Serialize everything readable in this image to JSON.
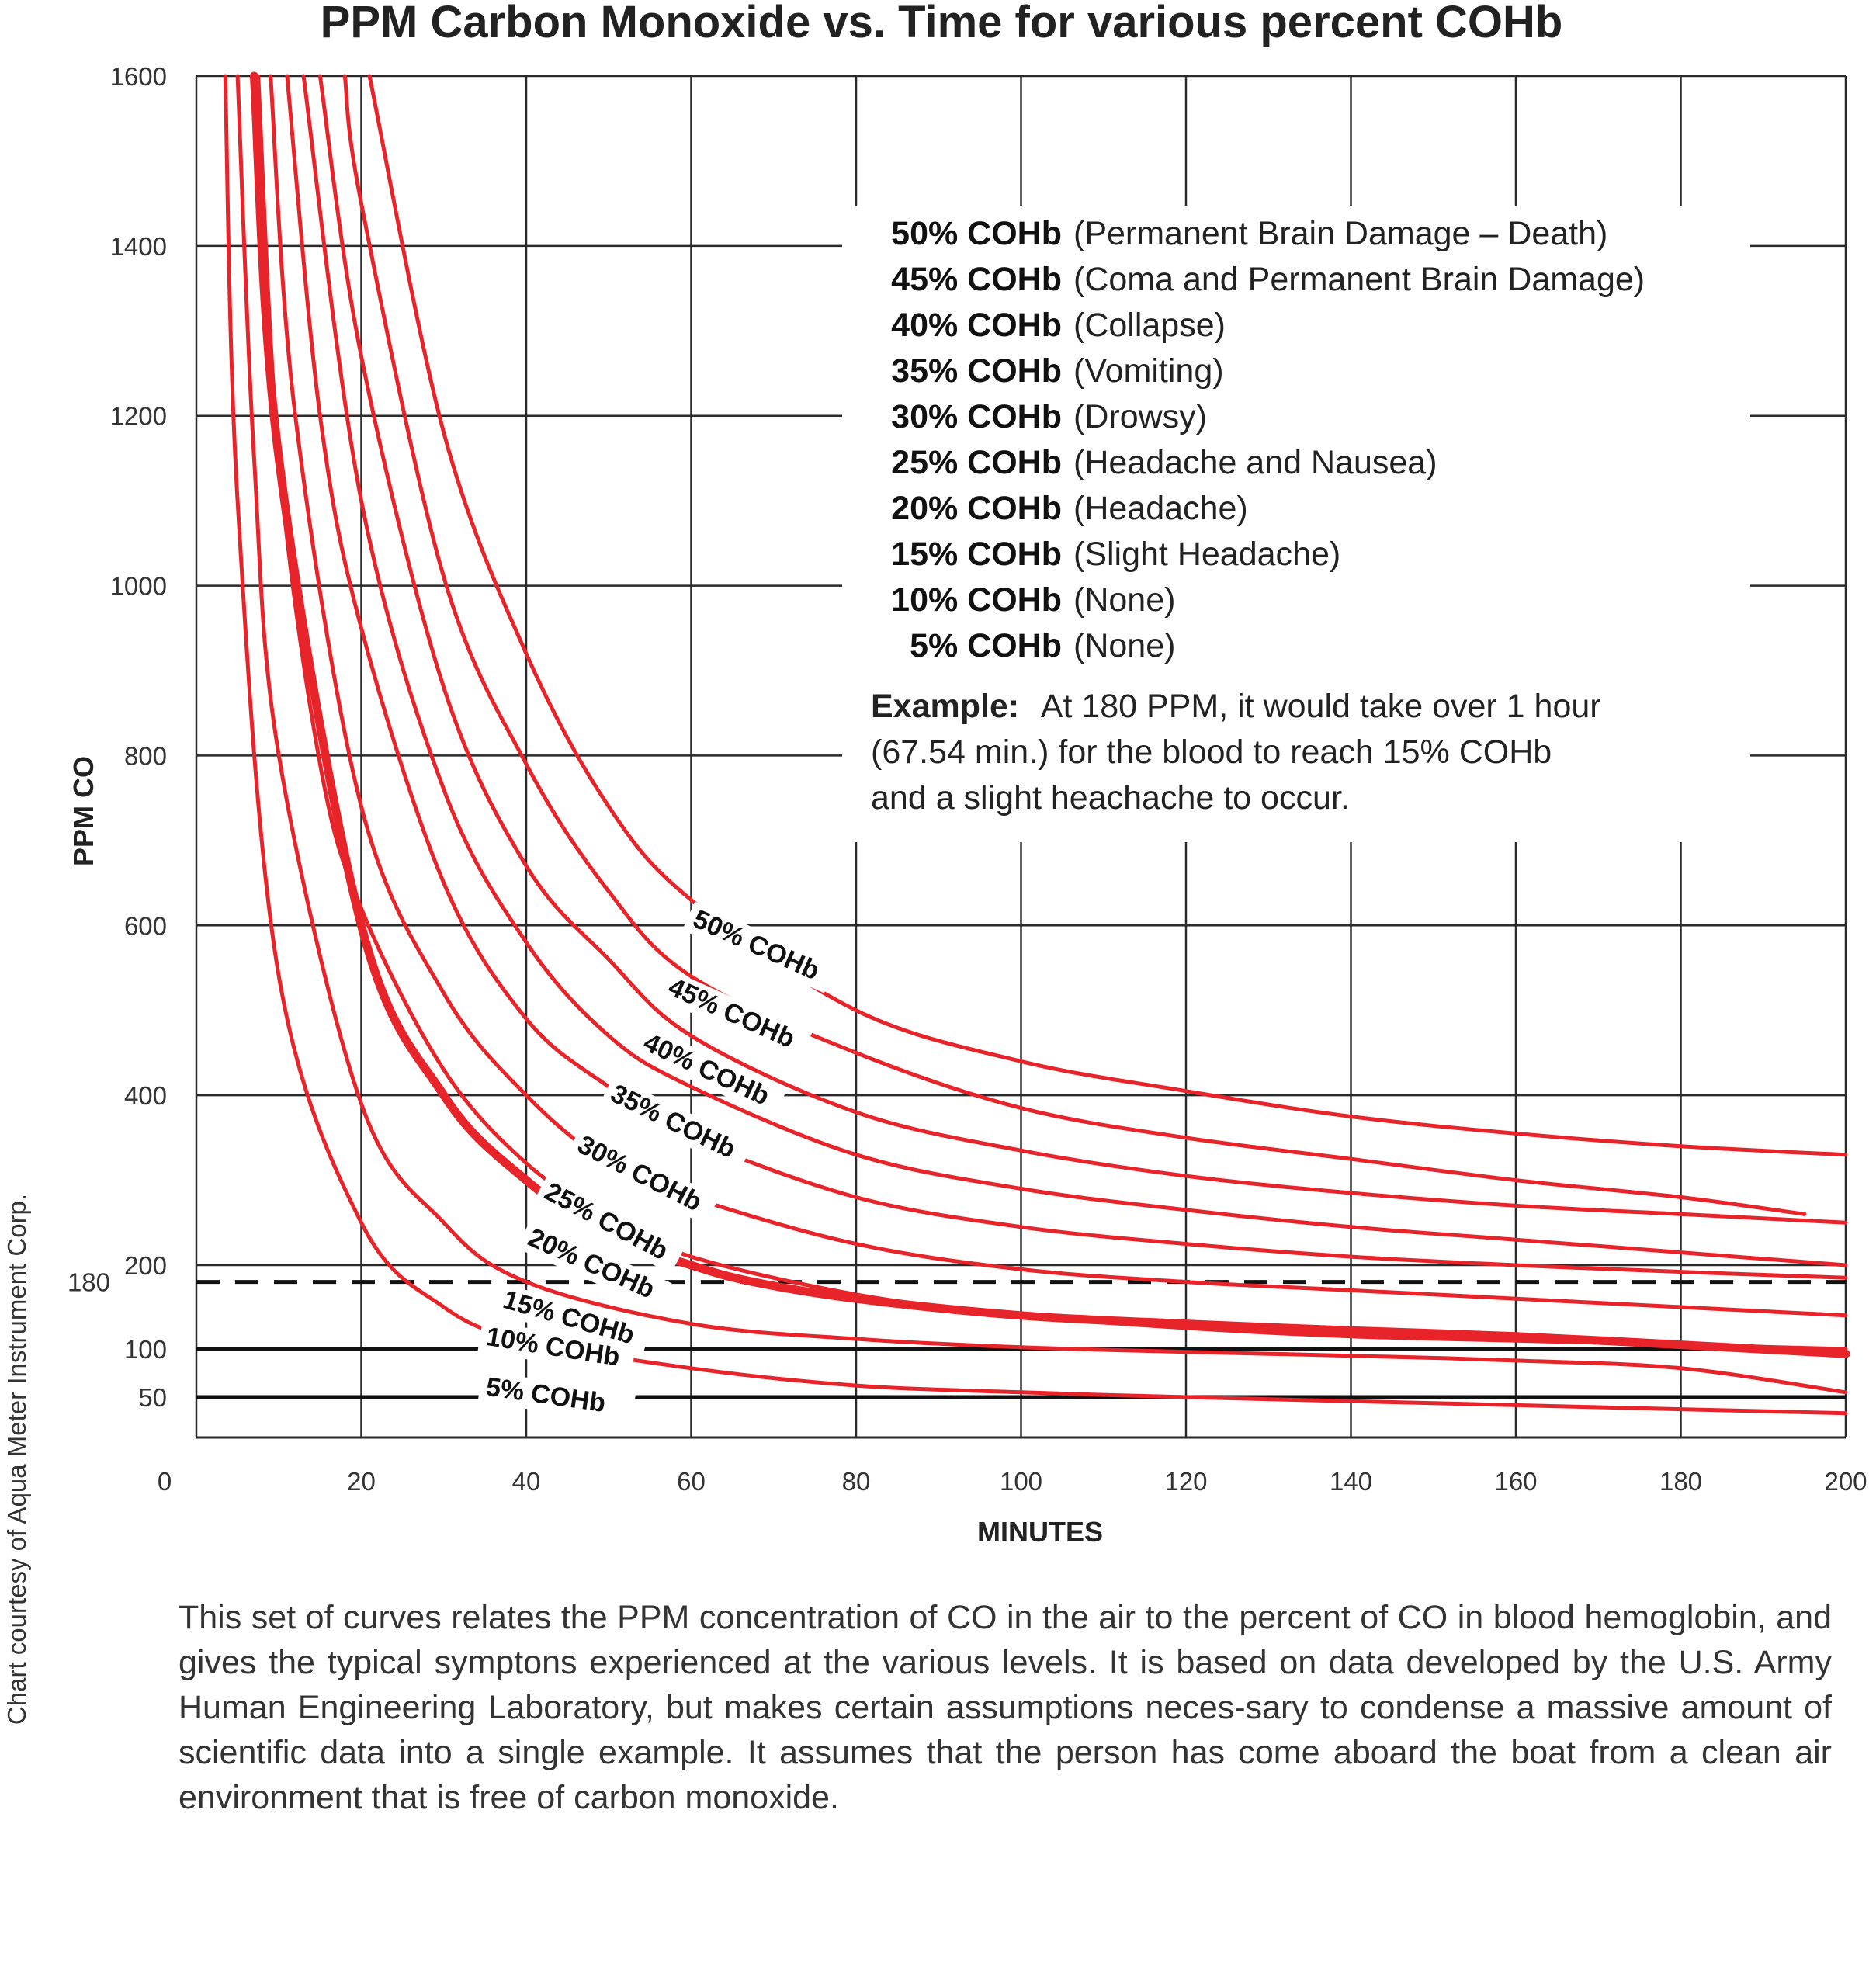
{
  "chart_data": {
    "type": "line",
    "title": "PPM Carbon Monoxide vs. Time for various percent COHb",
    "xlabel": "MINUTES",
    "ylabel": "PPM CO",
    "xlim": [
      0,
      200
    ],
    "ylim": [
      0,
      1600
    ],
    "x_ticks": [
      "0",
      "20",
      "40",
      "60",
      "80",
      "100",
      "120",
      "140",
      "160",
      "180",
      "200"
    ],
    "y_ticks": [
      "1600",
      "1400",
      "1200",
      "1000",
      "800",
      "600",
      "400",
      "200",
      "180",
      "100",
      "50"
    ],
    "grid": true,
    "series": [
      {
        "name": "5% COHb",
        "x": [
          3.5,
          5,
          10,
          20,
          30,
          40,
          60,
          80,
          100,
          120,
          140,
          160,
          180,
          200
        ],
        "y": [
          1600,
          1100,
          540,
          250,
          150,
          110,
          80,
          62,
          55,
          50,
          45,
          40,
          35,
          30
        ]
      },
      {
        "name": "10% COHb",
        "x": [
          5,
          7,
          10,
          20,
          30,
          40,
          60,
          80,
          100,
          120,
          140,
          160,
          180,
          200
        ],
        "y": [
          1600,
          1150,
          800,
          390,
          250,
          180,
          130,
          112,
          102,
          97,
          93,
          88,
          80,
          55
        ]
      },
      {
        "name": "15% COHb",
        "x": [
          7,
          10,
          20,
          30,
          40,
          50,
          60,
          67.54,
          80,
          100,
          120,
          140,
          160,
          180,
          200
        ],
        "y": [
          1600,
          1150,
          600,
          400,
          300,
          235,
          200,
          180,
          160,
          140,
          130,
          122,
          115,
          105,
          95
        ]
      },
      {
        "name": "20% COHb",
        "x": [
          7.5,
          10,
          15,
          20,
          30,
          40,
          50,
          60,
          80,
          100,
          120,
          140,
          160,
          180,
          200
        ],
        "y": [
          1600,
          1150,
          790,
          620,
          430,
          320,
          255,
          210,
          165,
          140,
          125,
          115,
          110,
          105,
          100
        ]
      },
      {
        "name": "25% COHb",
        "x": [
          9,
          12,
          20,
          30,
          40,
          50,
          60,
          80,
          100,
          120,
          140,
          160,
          180,
          200
        ],
        "y": [
          1600,
          1200,
          740,
          520,
          400,
          320,
          280,
          225,
          195,
          180,
          170,
          160,
          150,
          140
        ]
      },
      {
        "name": "30% COHb",
        "x": [
          11,
          15,
          20,
          30,
          40,
          50,
          60,
          80,
          100,
          120,
          140,
          160,
          180,
          200
        ],
        "y": [
          1600,
          1200,
          950,
          650,
          490,
          410,
          350,
          280,
          245,
          225,
          210,
          200,
          192,
          185
        ]
      },
      {
        "name": "35% COHb",
        "x": [
          13,
          20,
          30,
          40,
          50,
          60,
          80,
          100,
          120,
          140,
          160,
          180,
          200
        ],
        "y": [
          1600,
          1100,
          760,
          580,
          470,
          410,
          330,
          290,
          265,
          245,
          230,
          215,
          200
        ]
      },
      {
        "name": "40% COHb",
        "x": [
          15,
          20,
          30,
          40,
          50,
          60,
          80,
          100,
          120,
          140,
          160,
          180,
          200
        ],
        "y": [
          1600,
          1270,
          880,
          670,
          560,
          470,
          380,
          335,
          305,
          285,
          270,
          260,
          250
        ]
      },
      {
        "name": "45% COHb",
        "x": [
          18,
          20,
          30,
          40,
          50,
          60,
          80,
          100,
          120,
          140,
          160,
          180,
          195
        ],
        "y": [
          1600,
          1450,
          1010,
          790,
          640,
          540,
          450,
          385,
          350,
          325,
          300,
          280,
          260
        ]
      },
      {
        "name": "50% COHb",
        "x": [
          21,
          30,
          40,
          50,
          60,
          80,
          100,
          120,
          140,
          160,
          180,
          200
        ],
        "y": [
          1600,
          1180,
          920,
          740,
          630,
          500,
          440,
          405,
          375,
          355,
          340,
          330
        ]
      }
    ],
    "reference_lines": [
      {
        "y": 180,
        "style": "dashed"
      },
      {
        "y": 100,
        "style": "solid"
      },
      {
        "y": 50,
        "style": "solid"
      }
    ],
    "highlight_series": "15% COHb"
  },
  "legend": {
    "items": [
      {
        "label": "50% COHb",
        "desc": "(Permanent Brain Damage – Death)"
      },
      {
        "label": "45% COHb",
        "desc": "(Coma and Permanent Brain Damage)"
      },
      {
        "label": "40% COHb",
        "desc": "(Collapse)"
      },
      {
        "label": "35% COHb",
        "desc": "(Vomiting)"
      },
      {
        "label": "30% COHb",
        "desc": "(Drowsy)"
      },
      {
        "label": "25% COHb",
        "desc": "(Headache and Nausea)"
      },
      {
        "label": "20% COHb",
        "desc": "(Headache)"
      },
      {
        "label": "15% COHb",
        "desc": "(Slight Headache)"
      },
      {
        "label": "10% COHb",
        "desc": "(None)"
      },
      {
        "label": "5% COHb",
        "desc": "(None)"
      }
    ]
  },
  "example": {
    "label": "Example:",
    "line1": "At 180 PPM, it would take over 1 hour",
    "line2": "(67.54 min.) for the blood to reach 15% COHb",
    "line3": "and a slight heachache to occur."
  },
  "credit": "Chart courtesy of Aqua Meter Instrument Corp.",
  "caption": "This set of curves relates the PPM concentration of CO in the air to the percent of CO in blood hemoglobin, and gives the typical symptons experienced at the various levels. It is based on data developed by the U.S. Army Human Engineering Laboratory, but makes certain assumptions neces-sary to condense a massive amount of scientific data into a single example. It assumes that the person has come aboard the boat from a clean air environment that is free of carbon monoxide.",
  "colors": {
    "curve": "#e8242b",
    "grid": "#2a2a2a",
    "text": "#222222"
  }
}
